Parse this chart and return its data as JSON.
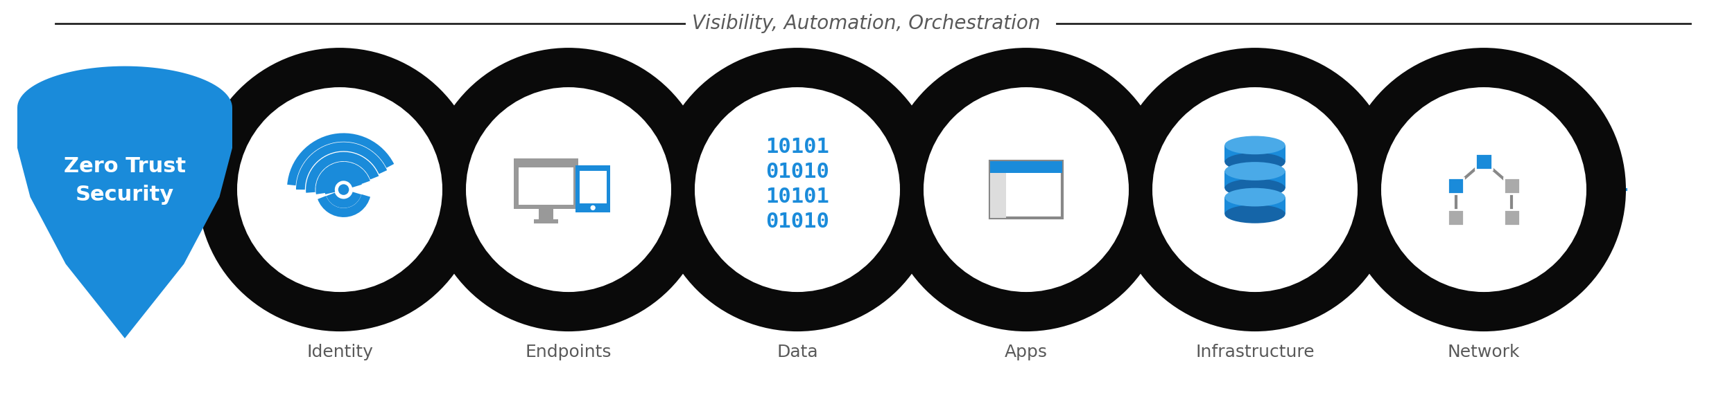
{
  "title": "Visibility, Automation, Orchestration",
  "title_color": "#595959",
  "title_fontsize": 20,
  "shield_text": "Zero Trust\nSecurity",
  "shield_color": "#1a8bda",
  "shield_text_color": "#ffffff",
  "shield_fontsize": 22,
  "categories": [
    "Identity",
    "Endpoints",
    "Data",
    "Apps",
    "Infrastructure",
    "Network"
  ],
  "label_fontsize": 18,
  "label_color": "#595959",
  "circle_outer_color": "#0a0a0a",
  "circle_inner_color": "#ffffff",
  "line_color": "#1a8bda",
  "line_width": 3.0,
  "bg_color": "#ffffff",
  "icon_color_blue": "#1a8bda",
  "icon_color_gray": "#aaaaaa",
  "icon_color_lightgray": "#cccccc",
  "figwidth": 24.98,
  "figheight": 5.71,
  "dpi": 100
}
